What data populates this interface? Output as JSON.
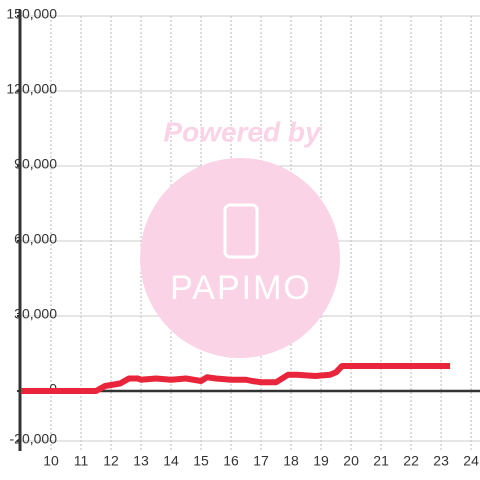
{
  "chart_data": {
    "type": "line",
    "watermark": [
      "Powered by",
      "PAPIMO"
    ],
    "x": [
      9.0,
      11.5,
      11.8,
      12.3,
      12.6,
      12.9,
      13.0,
      13.5,
      14.0,
      14.5,
      15.0,
      15.2,
      15.5,
      16.0,
      16.5,
      16.7,
      17.0,
      17.5,
      17.9,
      18.2,
      18.8,
      19.3,
      19.5,
      19.7,
      20.0,
      23.3
    ],
    "series": [
      {
        "color": "#e8253b",
        "values": [
          0,
          0,
          2000,
          3000,
          5000,
          5000,
          4500,
          5000,
          4500,
          5000,
          4000,
          5500,
          5000,
          4500,
          4500,
          4000,
          3500,
          3500,
          6500,
          6500,
          6000,
          6500,
          7500,
          10000,
          10000,
          10000
        ]
      }
    ],
    "xlim": [
      9,
      24.33
    ],
    "xticks": [
      10,
      11,
      12,
      13,
      14,
      15,
      16,
      17,
      18,
      19,
      20,
      21,
      22,
      23,
      24
    ],
    "ylim": [
      -24000,
      150000
    ],
    "yticks": [
      {
        "value": -20000,
        "label": "-20,000"
      },
      0,
      {
        "value": 30000,
        "label": "30,000"
      },
      {
        "value": 60000,
        "label": "60,000"
      },
      {
        "value": 90000,
        "label": "90,000"
      },
      {
        "value": 120000,
        "label": "120,000"
      },
      {
        "value": 150000,
        "label": "150,000"
      }
    ],
    "grid": true
  }
}
